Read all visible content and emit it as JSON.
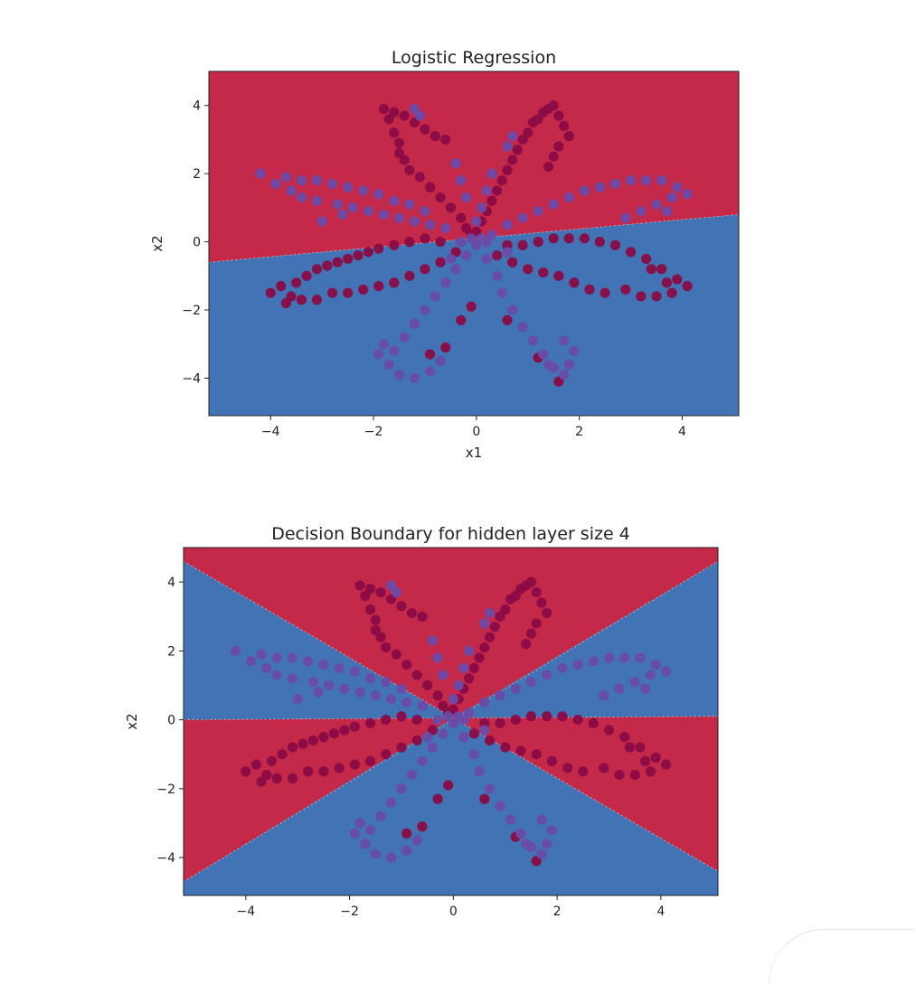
{
  "chart_data": [
    {
      "type": "scatter",
      "title": "Logistic Regression",
      "xlabel": "x1",
      "ylabel": "x2",
      "xlim": [
        -5.2,
        5.1
      ],
      "ylim": [
        -5.1,
        5.0
      ],
      "xticks": [
        -4,
        -2,
        0,
        2,
        4
      ],
      "yticks": [
        -4,
        -2,
        0,
        2,
        4
      ],
      "tick_labels_x": [
        "−4",
        "−2",
        "0",
        "2",
        "4"
      ],
      "tick_labels_y": [
        "−4",
        "−2",
        "0",
        "2",
        "4"
      ],
      "grid": false,
      "legend": "none",
      "background": {
        "description_kind": "linear decision boundary",
        "line": [
          [
            -5.2,
            -0.6
          ],
          [
            5.1,
            0.8
          ]
        ],
        "region_colors": {
          "above": "#c4294a",
          "below": "#4273b4"
        }
      },
      "series": [
        {
          "color": "#8a0b45",
          "points": [
            [
              -1.8,
              3.9
            ],
            [
              -1.6,
              3.8
            ],
            [
              -1.4,
              3.7
            ],
            [
              -1.2,
              3.5
            ],
            [
              -1.0,
              3.3
            ],
            [
              -0.8,
              3.1
            ],
            [
              -0.6,
              3.0
            ],
            [
              -1.7,
              3.6
            ],
            [
              -1.6,
              3.2
            ],
            [
              -1.5,
              2.9
            ],
            [
              -1.5,
              2.6
            ],
            [
              -1.4,
              2.4
            ],
            [
              -1.3,
              2.1
            ],
            [
              -1.1,
              1.9
            ],
            [
              -0.9,
              1.6
            ],
            [
              -0.7,
              1.3
            ],
            [
              -0.5,
              1.0
            ],
            [
              -0.3,
              0.7
            ],
            [
              -0.2,
              0.4
            ],
            [
              -0.1,
              0.2
            ],
            [
              0.0,
              0.3
            ],
            [
              0.1,
              0.6
            ],
            [
              0.2,
              0.9
            ],
            [
              0.3,
              1.2
            ],
            [
              0.4,
              1.5
            ],
            [
              0.5,
              1.8
            ],
            [
              0.6,
              2.1
            ],
            [
              0.7,
              2.4
            ],
            [
              0.8,
              2.7
            ],
            [
              0.9,
              3.0
            ],
            [
              1.0,
              3.2
            ],
            [
              1.1,
              3.5
            ],
            [
              1.2,
              3.6
            ],
            [
              1.3,
              3.8
            ],
            [
              1.4,
              3.9
            ],
            [
              1.5,
              4.0
            ],
            [
              1.6,
              3.7
            ],
            [
              1.7,
              3.4
            ],
            [
              1.8,
              3.1
            ],
            [
              1.6,
              2.8
            ],
            [
              1.5,
              2.5
            ],
            [
              1.4,
              2.2
            ],
            [
              -4.0,
              -1.5
            ],
            [
              -3.8,
              -1.3
            ],
            [
              -3.6,
              -1.6
            ],
            [
              -3.5,
              -1.2
            ],
            [
              -3.3,
              -1.0
            ],
            [
              -3.1,
              -0.8
            ],
            [
              -2.9,
              -0.7
            ],
            [
              -2.7,
              -0.6
            ],
            [
              -2.5,
              -0.5
            ],
            [
              -2.3,
              -0.4
            ],
            [
              -2.1,
              -0.3
            ],
            [
              -1.9,
              -0.2
            ],
            [
              -1.6,
              -0.1
            ],
            [
              -1.3,
              0.0
            ],
            [
              -1.0,
              0.1
            ],
            [
              -0.7,
              0.0
            ],
            [
              -3.7,
              -1.8
            ],
            [
              -3.4,
              -1.7
            ],
            [
              -3.1,
              -1.7
            ],
            [
              -2.8,
              -1.5
            ],
            [
              -2.5,
              -1.5
            ],
            [
              -2.2,
              -1.4
            ],
            [
              -1.9,
              -1.3
            ],
            [
              -1.6,
              -1.2
            ],
            [
              -1.3,
              -1.0
            ],
            [
              -1.0,
              -0.8
            ],
            [
              -0.7,
              -0.6
            ],
            [
              -0.4,
              -0.3
            ],
            [
              0.4,
              -0.4
            ],
            [
              0.7,
              -0.6
            ],
            [
              1.0,
              -0.8
            ],
            [
              1.3,
              -0.9
            ],
            [
              1.6,
              -1.0
            ],
            [
              1.9,
              -1.2
            ],
            [
              2.2,
              -1.4
            ],
            [
              2.5,
              -1.5
            ],
            [
              0.6,
              -0.1
            ],
            [
              0.9,
              -0.1
            ],
            [
              1.2,
              0.0
            ],
            [
              1.5,
              0.1
            ],
            [
              1.8,
              0.1
            ],
            [
              2.1,
              0.1
            ],
            [
              2.4,
              0.0
            ],
            [
              2.7,
              -0.1
            ],
            [
              3.0,
              -0.3
            ],
            [
              3.3,
              -0.5
            ],
            [
              3.6,
              -0.8
            ],
            [
              3.9,
              -1.1
            ],
            [
              4.1,
              -1.3
            ],
            [
              3.8,
              -1.5
            ],
            [
              3.5,
              -1.6
            ],
            [
              3.2,
              -1.6
            ],
            [
              2.9,
              -1.4
            ],
            [
              3.7,
              -1.2
            ],
            [
              3.4,
              -0.8
            ],
            [
              -0.1,
              -1.9
            ],
            [
              -0.3,
              -2.3
            ],
            [
              -0.6,
              -3.1
            ],
            [
              -0.9,
              -3.3
            ],
            [
              1.2,
              -3.4
            ],
            [
              1.6,
              -4.1
            ],
            [
              0.6,
              -2.3
            ]
          ]
        },
        {
          "color": "#6a4ba8",
          "points": [
            [
              -1.2,
              3.9
            ],
            [
              -1.1,
              3.7
            ],
            [
              0.7,
              3.1
            ],
            [
              0.6,
              2.8
            ],
            [
              -0.4,
              2.3
            ],
            [
              -0.3,
              1.8
            ],
            [
              -0.2,
              1.3
            ],
            [
              -4.2,
              2.0
            ],
            [
              -3.9,
              1.7
            ],
            [
              -3.6,
              1.5
            ],
            [
              -3.4,
              1.3
            ],
            [
              -3.1,
              1.2
            ],
            [
              -2.7,
              1.1
            ],
            [
              -2.4,
              1.0
            ],
            [
              -2.1,
              0.9
            ],
            [
              -1.8,
              0.8
            ],
            [
              -1.5,
              0.7
            ],
            [
              -1.2,
              0.6
            ],
            [
              -0.9,
              0.5
            ],
            [
              -0.6,
              0.4
            ],
            [
              -3.7,
              1.9
            ],
            [
              -3.4,
              1.8
            ],
            [
              -3.1,
              1.8
            ],
            [
              -2.8,
              1.7
            ],
            [
              -2.5,
              1.6
            ],
            [
              -2.2,
              1.5
            ],
            [
              -1.9,
              1.4
            ],
            [
              -1.6,
              1.2
            ],
            [
              -1.3,
              1.1
            ],
            [
              -1.0,
              0.9
            ],
            [
              -2.6,
              0.8
            ],
            [
              -3.0,
              0.6
            ],
            [
              0.6,
              0.5
            ],
            [
              0.9,
              0.7
            ],
            [
              1.2,
              0.9
            ],
            [
              1.5,
              1.1
            ],
            [
              1.8,
              1.3
            ],
            [
              2.1,
              1.5
            ],
            [
              2.4,
              1.6
            ],
            [
              2.7,
              1.7
            ],
            [
              3.0,
              1.8
            ],
            [
              3.3,
              1.8
            ],
            [
              3.6,
              1.8
            ],
            [
              3.9,
              1.6
            ],
            [
              4.1,
              1.4
            ],
            [
              3.8,
              1.3
            ],
            [
              3.5,
              1.1
            ],
            [
              3.2,
              0.9
            ],
            [
              2.9,
              0.7
            ],
            [
              3.7,
              0.9
            ],
            [
              -0.2,
              -0.4
            ],
            [
              -0.4,
              -0.8
            ],
            [
              -0.6,
              -1.2
            ],
            [
              -0.8,
              -1.6
            ],
            [
              -1.0,
              -2.0
            ],
            [
              -1.2,
              -2.4
            ],
            [
              -1.4,
              -2.8
            ],
            [
              -1.6,
              -3.2
            ],
            [
              -1.7,
              -3.6
            ],
            [
              -1.5,
              -3.9
            ],
            [
              -1.2,
              -4.0
            ],
            [
              -0.9,
              -3.8
            ],
            [
              -0.7,
              -3.5
            ],
            [
              -1.9,
              -3.3
            ],
            [
              -1.8,
              -3.0
            ],
            [
              0.2,
              -0.5
            ],
            [
              0.4,
              -1.0
            ],
            [
              0.5,
              -1.5
            ],
            [
              0.7,
              -2.0
            ],
            [
              0.9,
              -2.5
            ],
            [
              1.1,
              -2.9
            ],
            [
              1.3,
              -3.3
            ],
            [
              1.5,
              -3.7
            ],
            [
              1.7,
              -3.9
            ],
            [
              1.8,
              -3.6
            ],
            [
              1.9,
              -3.2
            ],
            [
              1.7,
              -2.9
            ],
            [
              1.4,
              -3.6
            ],
            [
              0.0,
              -0.1
            ],
            [
              0.1,
              0.1
            ],
            [
              -0.1,
              0.1
            ],
            [
              0.2,
              0.0
            ],
            [
              -0.3,
              0.0
            ],
            [
              0.3,
              0.2
            ],
            [
              0.0,
              0.6
            ],
            [
              0.1,
              1.0
            ],
            [
              0.2,
              1.5
            ],
            [
              0.3,
              2.0
            ],
            [
              -0.5,
              -0.5
            ],
            [
              0.6,
              -0.3
            ]
          ]
        }
      ]
    },
    {
      "type": "scatter",
      "title": "Decision Boundary for hidden layer size 4",
      "xlabel": "",
      "ylabel": "x2",
      "xlim": [
        -5.2,
        5.1
      ],
      "ylim": [
        -5.1,
        5.0
      ],
      "xticks": [
        -4,
        -2,
        0,
        2,
        4
      ],
      "yticks": [
        -4,
        -2,
        0,
        2,
        4
      ],
      "tick_labels_x": [
        "−4",
        "−2",
        "0",
        "2",
        "4"
      ],
      "tick_labels_y": [
        "−4",
        "−2",
        "0",
        "2",
        "4"
      ],
      "grid": false,
      "legend": "none",
      "background": {
        "description_kind": "piecewise-linear decision regions meeting near origin",
        "boundaries": [
          [
            [
              -5.2,
              4.6
            ],
            [
              5.1,
              -4.4
            ]
          ],
          [
            [
              -5.2,
              -4.7
            ],
            [
              5.1,
              4.6
            ]
          ],
          [
            [
              -5.2,
              0.0
            ],
            [
              5.1,
              0.1
            ]
          ]
        ],
        "region_colors": {
          "top": "#c4294a",
          "left_upper": "#4273b4",
          "right_upper": "#4273b4",
          "left_lower": "#c4294a",
          "right_lower": "#c4294a",
          "bottom": "#4273b4"
        }
      },
      "series_ref": "same points as chart 1"
    }
  ]
}
